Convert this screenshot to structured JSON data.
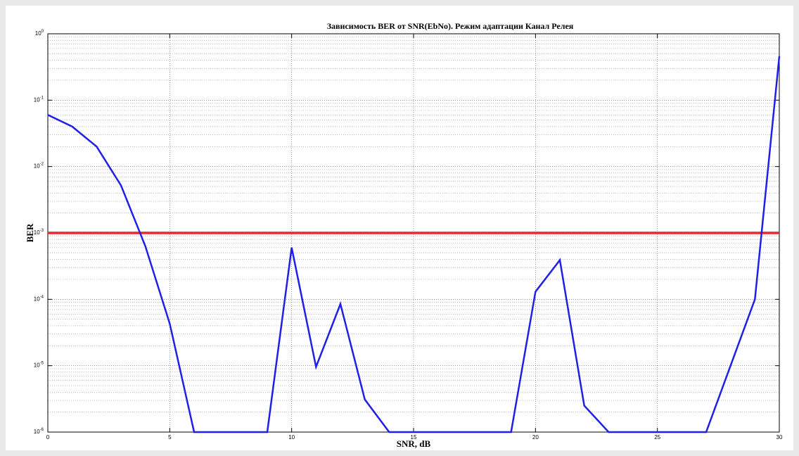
{
  "chart_data": {
    "type": "line",
    "title": "Зависимость BER от SNR(EbNo). Режим адаптации  Канал Релея",
    "xlabel": "SNR, dB",
    "ylabel": "BER",
    "x": [
      0,
      1,
      2,
      3,
      4,
      5,
      6,
      7,
      8,
      9,
      10,
      11,
      12,
      13,
      14,
      15,
      16,
      17,
      18,
      19,
      20,
      21,
      22,
      23,
      24,
      25,
      26,
      27,
      28,
      29,
      30
    ],
    "series": [
      {
        "name": "BER",
        "color": "#1f1fe8",
        "values": [
          0.06,
          0.04,
          0.02,
          0.0052,
          0.00063,
          4.3e-05,
          1e-06,
          1e-06,
          1e-06,
          1e-06,
          0.0006,
          9.6e-06,
          8.5e-05,
          3.1e-06,
          1e-06,
          1e-06,
          1e-06,
          1e-06,
          1e-06,
          1e-06,
          0.00013,
          0.00039,
          2.5e-06,
          1e-06,
          1e-06,
          1e-06,
          1e-06,
          1e-06,
          1e-05,
          0.0001,
          0.46
        ]
      }
    ],
    "reference_line": {
      "value": 0.001,
      "color": "#e8282b"
    },
    "xlim": [
      0,
      30
    ],
    "xticks": [
      0,
      5,
      10,
      15,
      20,
      25,
      30
    ],
    "ylim": [
      1e-06,
      1
    ],
    "log_y": true,
    "yticks": [
      {
        "value": 1e-06,
        "label": "10",
        "exponent": "-6"
      },
      {
        "value": 1e-05,
        "label": "10",
        "exponent": "-5"
      },
      {
        "value": 0.0001,
        "label": "10",
        "exponent": "-4"
      },
      {
        "value": 0.001,
        "label": "10",
        "exponent": "-3"
      },
      {
        "value": 0.01,
        "label": "10",
        "exponent": "-2"
      },
      {
        "value": 0.1,
        "label": "10",
        "exponent": "-1"
      },
      {
        "value": 1,
        "label": "10",
        "exponent": "0"
      }
    ],
    "grid": true,
    "minor_grid": true
  }
}
